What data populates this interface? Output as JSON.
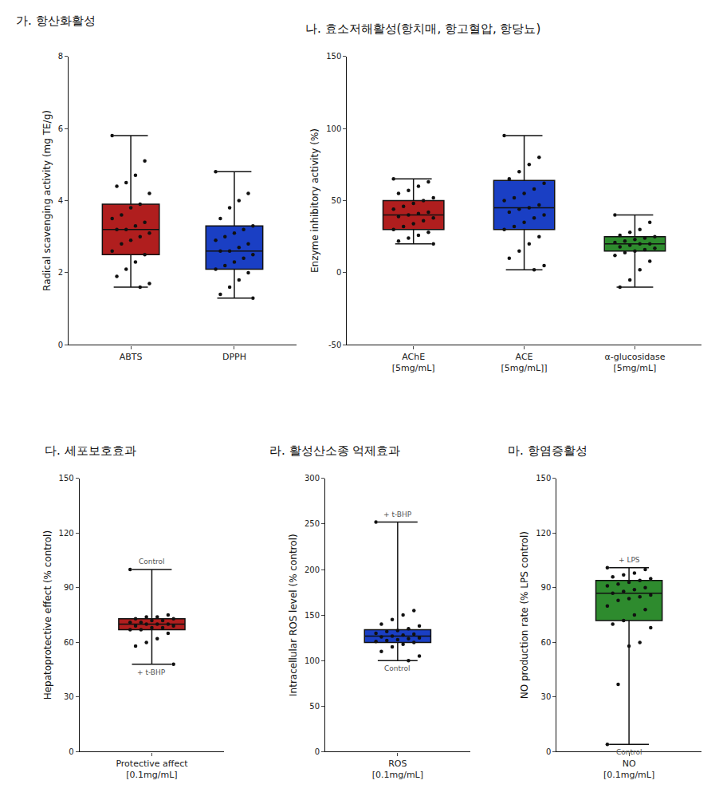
{
  "chart_data": [
    {
      "type": "box",
      "title": "가. 항산화활성",
      "y_label": "Radical scavenging activity (mg TE/g)",
      "ylim": [
        0,
        8
      ],
      "yticks": [
        0,
        2,
        4,
        6,
        8
      ],
      "grid": false,
      "boxes": [
        {
          "category": "ABTS",
          "color": "#b01e1e",
          "lowerfence": 1.6,
          "q1": 2.5,
          "median": 3.2,
          "q3": 3.9,
          "upperfence": 5.8,
          "points": [
            5.8,
            5.1,
            4.7,
            4.5,
            4.4,
            4.2,
            3.9,
            3.8,
            3.6,
            3.5,
            3.4,
            3.3,
            3.2,
            3.2,
            3.1,
            3.0,
            2.9,
            2.8,
            2.6,
            2.5,
            2.3,
            2.1,
            1.9,
            1.7,
            1.6
          ]
        },
        {
          "category": "DPPH",
          "color": "#1a3fc4",
          "lowerfence": 1.3,
          "q1": 2.1,
          "median": 2.6,
          "q3": 3.3,
          "upperfence": 4.8,
          "points": [
            4.8,
            4.2,
            4.0,
            3.8,
            3.5,
            3.3,
            3.2,
            3.1,
            3.0,
            2.9,
            2.8,
            2.7,
            2.6,
            2.6,
            2.5,
            2.4,
            2.3,
            2.2,
            2.1,
            2.0,
            1.8,
            1.6,
            1.4,
            1.3
          ]
        }
      ]
    },
    {
      "type": "box",
      "title": "나. 효소저해활성(항치매, 항고혈압, 항당뇨)",
      "y_label": "Enzyme inhibitory activity (%)",
      "ylim": [
        -50,
        150
      ],
      "yticks": [
        -50,
        0,
        50,
        100,
        150
      ],
      "grid": false,
      "boxes": [
        {
          "category": "AChE\n[5mg/mL]",
          "color": "#b01e1e",
          "lowerfence": 20,
          "q1": 30,
          "median": 40,
          "q3": 50,
          "upperfence": 65,
          "points": [
            65,
            63,
            60,
            57,
            55,
            52,
            50,
            48,
            46,
            44,
            42,
            41,
            40,
            39,
            38,
            36,
            34,
            32,
            30,
            28,
            26,
            24,
            22,
            20
          ]
        },
        {
          "category": "ACE\n[5mg/mL]]",
          "color": "#1a3fc4",
          "lowerfence": 2,
          "q1": 30,
          "median": 45,
          "q3": 64,
          "upperfence": 95,
          "points": [
            95,
            80,
            75,
            70,
            65,
            62,
            58,
            55,
            52,
            50,
            47,
            45,
            44,
            42,
            40,
            38,
            35,
            32,
            30,
            25,
            20,
            15,
            10,
            5,
            2
          ]
        },
        {
          "category": "α-glucosidase\n[5mg/mL]",
          "color": "#2e8b2e",
          "lowerfence": -10,
          "q1": 15,
          "median": 20,
          "q3": 25,
          "upperfence": 40,
          "points": [
            40,
            35,
            30,
            28,
            26,
            25,
            24,
            23,
            22,
            21,
            20,
            20,
            19,
            18,
            17,
            16,
            15,
            14,
            12,
            8,
            2,
            -5,
            -10
          ]
        }
      ]
    },
    {
      "type": "box",
      "title": "다. 세포보호효과",
      "y_label": "Hepatoprotective effect (% control)",
      "ylim": [
        0,
        150
      ],
      "yticks": [
        0,
        30,
        60,
        90,
        120,
        150
      ],
      "grid": false,
      "boxes": [
        {
          "category": "Protective affect\n[0.1mg/mL]",
          "color": "#b01e1e",
          "lowerfence": 48,
          "q1": 67,
          "median": 70,
          "q3": 73,
          "upperfence": 100,
          "points": [
            100,
            75,
            74,
            74,
            73,
            73,
            72,
            72,
            71,
            71,
            70,
            70,
            70,
            69,
            69,
            68,
            68,
            67,
            67,
            65,
            62,
            60,
            58,
            48
          ]
        }
      ],
      "annotations": [
        {
          "text": "Control",
          "y": 100
        },
        {
          "text": "+ t-BHP",
          "y": 48
        }
      ]
    },
    {
      "type": "box",
      "title": "라. 활성산소종 억제효과",
      "y_label": "Intracellular ROS level (% control)",
      "ylim": [
        0,
        300
      ],
      "yticks": [
        0,
        50,
        100,
        150,
        200,
        250,
        300
      ],
      "grid": false,
      "boxes": [
        {
          "category": "ROS\n[0.1mg/mL]",
          "color": "#1a3fc4",
          "lowerfence": 100,
          "q1": 120,
          "median": 127,
          "q3": 134,
          "upperfence": 252,
          "points": [
            252,
            155,
            150,
            145,
            140,
            138,
            135,
            133,
            132,
            130,
            129,
            128,
            127,
            126,
            125,
            124,
            123,
            122,
            121,
            120,
            118,
            115,
            110,
            105,
            100
          ]
        }
      ],
      "annotations": [
        {
          "text": "+ t-BHP",
          "y": 252
        },
        {
          "text": "Control",
          "y": 100
        }
      ]
    },
    {
      "type": "box",
      "title": "마. 항염증활성",
      "y_label": "NO production rate (% LPS control)",
      "ylim": [
        0,
        150
      ],
      "yticks": [
        0,
        30,
        60,
        90,
        120,
        150
      ],
      "grid": false,
      "boxes": [
        {
          "category": "NO\n[0.1mg/mL]",
          "color": "#2e8b2e",
          "lowerfence": 4,
          "q1": 72,
          "median": 87,
          "q3": 94,
          "upperfence": 101,
          "points": [
            101,
            100,
            98,
            97,
            96,
            95,
            94,
            93,
            92,
            91,
            90,
            89,
            88,
            87,
            86,
            85,
            84,
            83,
            80,
            78,
            75,
            72,
            70,
            68,
            60,
            58,
            37,
            4
          ]
        }
      ],
      "annotations": [
        {
          "text": "+ LPS",
          "y": 101
        },
        {
          "text": "Control",
          "y": 4
        }
      ]
    }
  ]
}
